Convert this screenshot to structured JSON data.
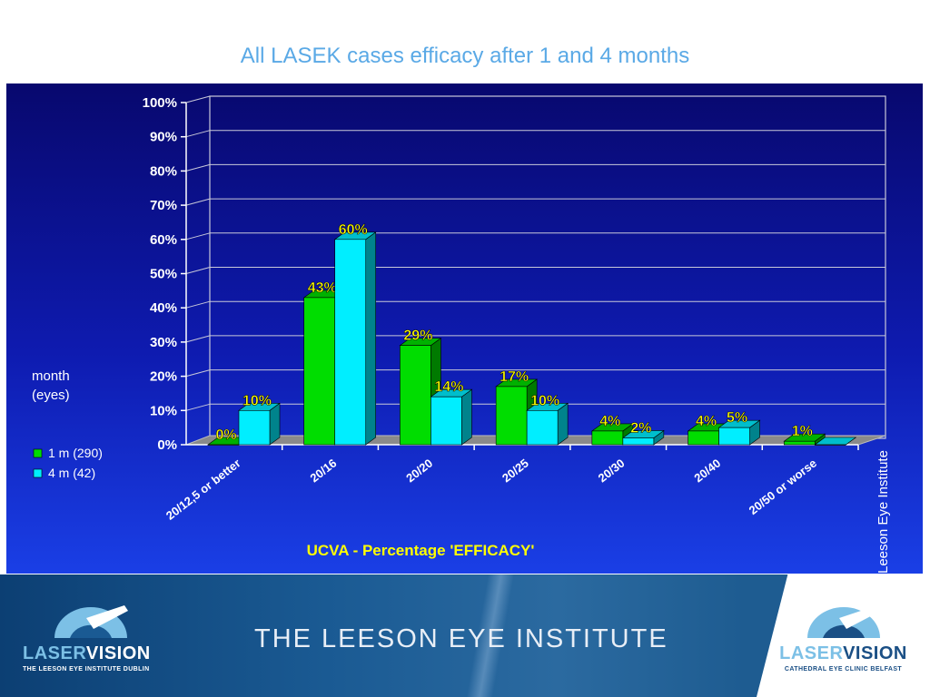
{
  "title": "All LASEK cases efficacy after 1 and 4 months",
  "chart_data": {
    "type": "bar",
    "categories": [
      "20/12,5 or better",
      "20/16",
      "20/20",
      "20/25",
      "20/30",
      "20/40",
      "20/50 or worse"
    ],
    "series": [
      {
        "name": "1 m (290)",
        "values": [
          0,
          43,
          29,
          17,
          4,
          4,
          1
        ],
        "labels": [
          "0%",
          "43%",
          "29%",
          "17%",
          "4%",
          "4%",
          "1%"
        ],
        "color": "#00dd00"
      },
      {
        "name": "4 m (42)",
        "values": [
          10,
          60,
          14,
          10,
          2,
          5,
          0
        ],
        "labels": [
          "10%",
          "60%",
          "14%",
          "10%",
          "2%",
          "5%",
          ""
        ],
        "color": "#00eeff"
      }
    ],
    "yticks": [
      "0%",
      "10%",
      "20%",
      "30%",
      "40%",
      "50%",
      "60%",
      "70%",
      "80%",
      "90%",
      "100%"
    ],
    "ylim": [
      0,
      100
    ],
    "xlabel": "UCVA - Percentage 'EFFICACY'",
    "ylabel": "",
    "legend_title": [
      "month",
      "(eyes)"
    ],
    "legend_position": "left",
    "grid": true,
    "side_label": "Leeson Eye Institute"
  },
  "footer": {
    "institute": "THE LEESON EYE INSTITUTE",
    "logo_left": {
      "a": "LASER",
      "b": "VISION",
      "sub": "THE LEESON EYE INSTITUTE DUBLIN"
    },
    "logo_right": {
      "a": "LASER",
      "b": "VISION",
      "sub": "CATHEDRAL EYE CLINIC BELFAST"
    }
  },
  "colors": {
    "panel_top": "#08086e",
    "panel_bottom": "#1a3fe6",
    "label_yellow": "#ffff00",
    "title_blue": "#5aa9e6"
  }
}
